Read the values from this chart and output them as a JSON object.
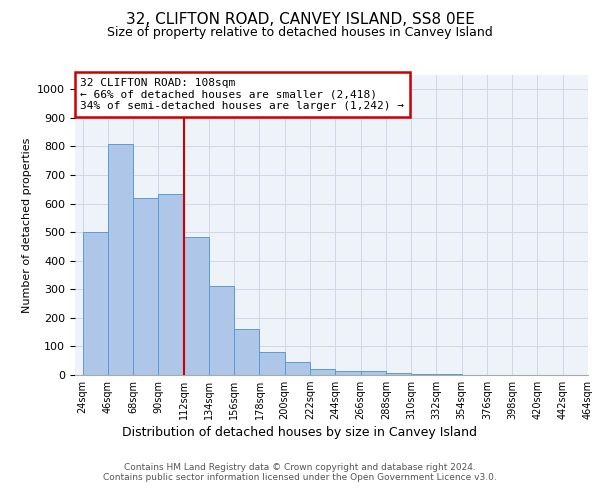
{
  "title": "32, CLIFTON ROAD, CANVEY ISLAND, SS8 0EE",
  "subtitle": "Size of property relative to detached houses in Canvey Island",
  "xlabel": "Distribution of detached houses by size in Canvey Island",
  "ylabel": "Number of detached properties",
  "bar_values": [
    500,
    810,
    620,
    635,
    483,
    310,
    162,
    80,
    47,
    22,
    15,
    15,
    8,
    3,
    2,
    1,
    0,
    0,
    0,
    0
  ],
  "bin_labels": [
    "24sqm",
    "46sqm",
    "68sqm",
    "90sqm",
    "112sqm",
    "134sqm",
    "156sqm",
    "178sqm",
    "200sqm",
    "222sqm",
    "244sqm",
    "266sqm",
    "288sqm",
    "310sqm",
    "332sqm",
    "354sqm",
    "376sqm",
    "398sqm",
    "420sqm",
    "442sqm",
    "464sqm"
  ],
  "bar_color": "#aec6e8",
  "bar_edge_color": "#5b9bd5",
  "vline_color": "#cc0000",
  "annotation_title": "32 CLIFTON ROAD: 108sqm",
  "annotation_line1": "← 66% of detached houses are smaller (2,418)",
  "annotation_line2": "34% of semi-detached houses are larger (1,242) →",
  "annotation_box_color": "#ffffff",
  "annotation_box_edge_color": "#cc0000",
  "grid_color": "#d0d8e8",
  "background_color": "#eef2f9",
  "ylim": [
    0,
    1050
  ],
  "vline_x": 4,
  "footer_line1": "Contains HM Land Registry data © Crown copyright and database right 2024.",
  "footer_line2": "Contains public sector information licensed under the Open Government Licence v3.0."
}
